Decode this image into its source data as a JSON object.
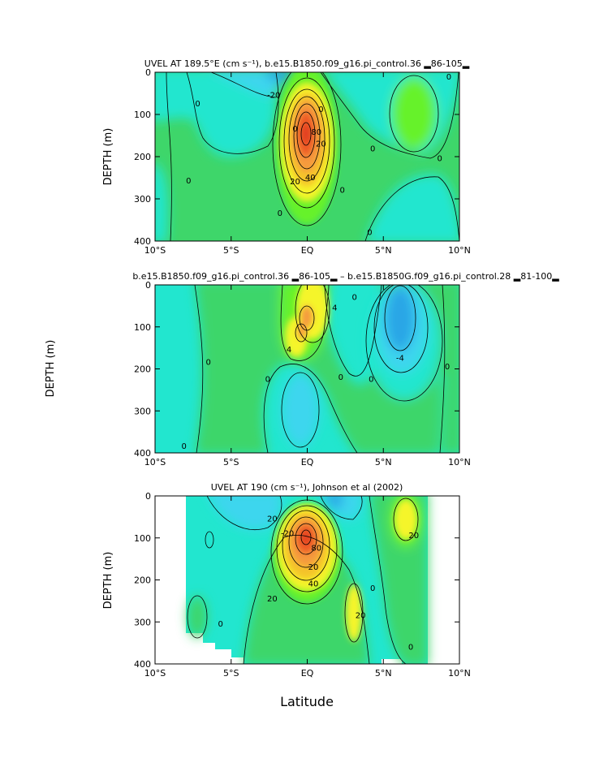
{
  "figure": {
    "xlabel": "Latitude",
    "shared_ylabel": "DEPTH (m)"
  },
  "colors": {
    "deep_blue": "#2aa6e6",
    "blue": "#3cd6ee",
    "cyan": "#22e6cf",
    "green": "#3ed66a",
    "lime": "#66f22a",
    "yellow": "#f5f52a",
    "gold": "#f5c42a",
    "orange": "#f59a3c",
    "red": "#ee5a26",
    "deep_red": "#e03a22"
  },
  "chart_data": [
    {
      "type": "heatmap",
      "title": "UVEL AT 189.5°E (cm s⁻¹), b.e15.B1850.f09_g16.pi_control.36 ▂86-105▂",
      "xlabel": "",
      "ylabel": "DEPTH (m)",
      "xlim": [
        -10,
        10
      ],
      "ylim": [
        400,
        0
      ],
      "xticks": [
        -10,
        -5,
        0,
        5,
        10
      ],
      "xtick_labels": [
        "10°S",
        "5°S",
        "EQ",
        "5°N",
        "10°N"
      ],
      "yticks": [
        0,
        100,
        200,
        300,
        400
      ],
      "ytick_labels": [
        "0",
        "100",
        "200",
        "300",
        "400"
      ],
      "contour_labels": [
        {
          "text": "-20",
          "x": -2.2,
          "y": 55
        },
        {
          "text": "0",
          "x": -7.2,
          "y": 75
        },
        {
          "text": "0",
          "x": -0.8,
          "y": 135
        },
        {
          "text": "20",
          "x": 0.9,
          "y": 170
        },
        {
          "text": "40",
          "x": 0.2,
          "y": 250
        },
        {
          "text": "20",
          "x": -0.8,
          "y": 260
        },
        {
          "text": "80",
          "x": 0.6,
          "y": 142
        },
        {
          "text": "0",
          "x": 0.9,
          "y": 88
        },
        {
          "text": "0",
          "x": 2.3,
          "y": 280
        },
        {
          "text": "0",
          "x": 4.3,
          "y": 182
        },
        {
          "text": "0",
          "x": 8.7,
          "y": 205
        },
        {
          "text": "0",
          "x": 9.3,
          "y": 12
        },
        {
          "text": "0",
          "x": -7.8,
          "y": 258
        },
        {
          "text": "0",
          "x": -1.8,
          "y": 335
        },
        {
          "text": "0",
          "x": 4.1,
          "y": 380
        }
      ]
    },
    {
      "type": "heatmap",
      "title": "b.e15.B1850.f09_g16.pi_control.36 ▂86-105▂ – b.e15.B1850G.f09_g16.pi_control.28 ▂81-100▂",
      "xlabel": "",
      "ylabel": "",
      "xlim": [
        -10,
        10
      ],
      "ylim": [
        400,
        0
      ],
      "xticks": [
        -10,
        -5,
        0,
        5,
        10
      ],
      "xtick_labels": [
        "10°S",
        "5°S",
        "EQ",
        "5°N",
        "10°N"
      ],
      "yticks": [
        0,
        100,
        200,
        300,
        400
      ],
      "ytick_labels": [
        "0",
        "100",
        "200",
        "300",
        "400"
      ],
      "contour_labels": [
        {
          "text": "4",
          "x": 1.8,
          "y": 55
        },
        {
          "text": "4",
          "x": -1.2,
          "y": 155
        },
        {
          "text": "-4",
          "x": 6.1,
          "y": 175
        },
        {
          "text": "0",
          "x": 3.1,
          "y": 30
        },
        {
          "text": "0",
          "x": -6.5,
          "y": 185
        },
        {
          "text": "0",
          "x": -2.6,
          "y": 225
        },
        {
          "text": "0",
          "x": 2.2,
          "y": 220
        },
        {
          "text": "0",
          "x": 4.2,
          "y": 225
        },
        {
          "text": "0",
          "x": 9.2,
          "y": 195
        },
        {
          "text": "0",
          "x": -8.1,
          "y": 385
        }
      ]
    },
    {
      "type": "heatmap",
      "title": "UVEL AT 190 (cm s⁻¹), Johnson et al (2002)",
      "xlabel": "Latitude",
      "ylabel": "DEPTH (m)",
      "xlim": [
        -10,
        10
      ],
      "ylim": [
        400,
        0
      ],
      "xticks": [
        -10,
        -5,
        0,
        5,
        10
      ],
      "xtick_labels": [
        "10°S",
        "5°S",
        "EQ",
        "5°N",
        "10°N"
      ],
      "yticks": [
        0,
        100,
        200,
        300,
        400
      ],
      "ytick_labels": [
        "0",
        "100",
        "200",
        "300",
        "400"
      ],
      "contour_labels": [
        {
          "text": "20",
          "x": -2.3,
          "y": 55
        },
        {
          "text": "-20",
          "x": -1.3,
          "y": 90
        },
        {
          "text": "80",
          "x": 0.6,
          "y": 125
        },
        {
          "text": "20",
          "x": 0.4,
          "y": 170
        },
        {
          "text": "40",
          "x": 0.4,
          "y": 210
        },
        {
          "text": "20",
          "x": -2.3,
          "y": 245
        },
        {
          "text": "20",
          "x": 3.5,
          "y": 285
        },
        {
          "text": "20",
          "x": 7.0,
          "y": 95
        },
        {
          "text": "0",
          "x": 4.3,
          "y": 220
        },
        {
          "text": "0",
          "x": -5.7,
          "y": 305
        },
        {
          "text": "0",
          "x": 6.8,
          "y": 360
        }
      ]
    }
  ]
}
